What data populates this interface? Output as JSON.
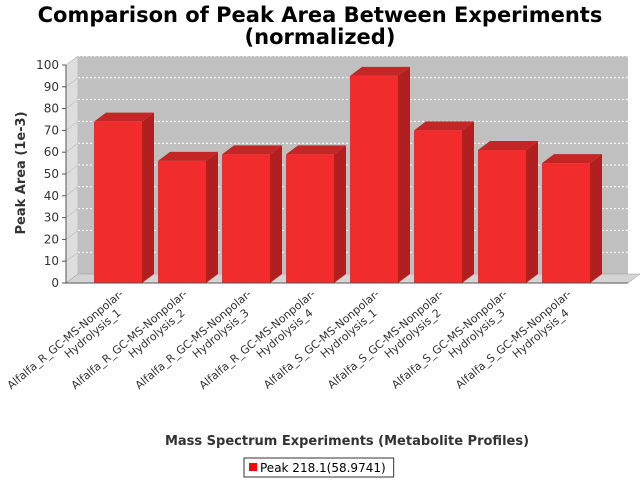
{
  "chart_data": {
    "type": "bar",
    "title": "Comparison of Peak Area Between Experiments (normalized)",
    "title_lines": [
      "Comparison of Peak Area Between Experiments",
      "(normalized)"
    ],
    "xlabel": "Mass Spectrum Experiments (Metabolite Profiles)",
    "ylabel": "Peak Area (1e-3)",
    "ylim": [
      0,
      100
    ],
    "yticks": [
      0,
      10,
      20,
      30,
      40,
      50,
      60,
      70,
      80,
      90,
      100
    ],
    "categories": [
      "Alfalfa_R_GC-MS-Nonpolar-Hydrolysis_1",
      "Alfalfa_R_GC-MS-Nonpolar-Hydrolysis_2",
      "Alfalfa_R_GC-MS-Nonpolar-Hydrolysis_3",
      "Alfalfa_R_GC-MS-Nonpolar-Hydrolysis_4",
      "Alfalfa_S_GC-MS-Nonpolar-Hydrolysis_1",
      "Alfalfa_S_GC-MS-Nonpolar-Hydrolysis_2",
      "Alfalfa_S_GC-MS-Nonpolar-Hydrolysis_3",
      "Alfalfa_S_GC-MS-Nonpolar-Hydrolysis_4"
    ],
    "category_lines": [
      [
        "Alfalfa_R_GC-MS-Nonpolar-",
        "Hydrolysis_1"
      ],
      [
        "Alfalfa_R_GC-MS-Nonpolar-",
        "Hydrolysis_2"
      ],
      [
        "Alfalfa_R_GC-MS-Nonpolar-",
        "Hydrolysis_3"
      ],
      [
        "Alfalfa_R_GC-MS-Nonpolar-",
        "Hydrolysis_4"
      ],
      [
        "Alfalfa_S_GC-MS-Nonpolar-",
        "Hydrolysis_1"
      ],
      [
        "Alfalfa_S_GC-MS-Nonpolar-",
        "Hydrolysis_2"
      ],
      [
        "Alfalfa_S_GC-MS-Nonpolar-",
        "Hydrolysis_3"
      ],
      [
        "Alfalfa_S_GC-MS-Nonpolar-",
        "Hydrolysis_4"
      ]
    ],
    "series": [
      {
        "name": "Peak 218.1(58.9741)",
        "values": [
          74,
          56,
          59,
          59,
          95,
          70,
          61,
          55
        ]
      }
    ],
    "legend": "bottom-center",
    "grid": true,
    "style": "3d",
    "colors": {
      "bar_front": "#f02c2c",
      "bar_side": "#b02020",
      "bar_top": "#c42626",
      "plot_bg": "#c0c0c0",
      "wall_side": "#dedede",
      "floor": "#d4d4d4",
      "gridline": "#ffffff"
    }
  }
}
